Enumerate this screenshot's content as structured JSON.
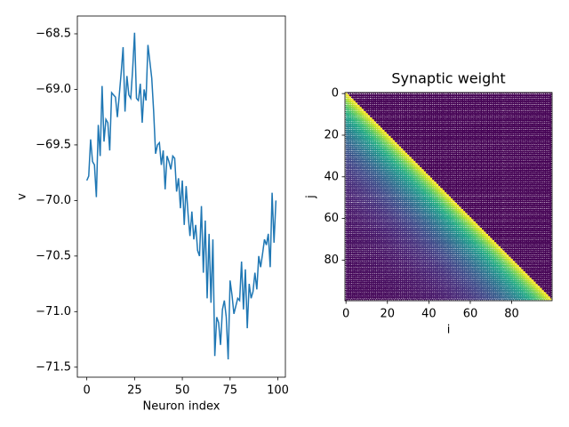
{
  "chart_data": [
    {
      "type": "line",
      "xlabel": "Neuron index",
      "ylabel": "v",
      "x": [
        0,
        1,
        2,
        3,
        4,
        5,
        6,
        7,
        8,
        9,
        10,
        11,
        12,
        13,
        14,
        15,
        16,
        17,
        18,
        19,
        20,
        21,
        22,
        23,
        24,
        25,
        26,
        27,
        28,
        29,
        30,
        31,
        32,
        33,
        34,
        35,
        36,
        37,
        38,
        39,
        40,
        41,
        42,
        43,
        44,
        45,
        46,
        47,
        48,
        49,
        50,
        51,
        52,
        53,
        54,
        55,
        56,
        57,
        58,
        59,
        60,
        61,
        62,
        63,
        64,
        65,
        66,
        67,
        68,
        69,
        70,
        71,
        72,
        73,
        74,
        75,
        76,
        77,
        78,
        79,
        80,
        81,
        82,
        83,
        84,
        85,
        86,
        87,
        88,
        89,
        90,
        91,
        92,
        93,
        94,
        95,
        96,
        97,
        98,
        99
      ],
      "series": [
        {
          "color": "#1f77b4",
          "values": [
            -69.82,
            -69.78,
            -69.45,
            -69.65,
            -69.68,
            -69.97,
            -69.32,
            -69.6,
            -68.97,
            -69.47,
            -69.27,
            -69.3,
            -69.55,
            -69.03,
            -69.05,
            -69.07,
            -69.25,
            -69.05,
            -68.85,
            -68.62,
            -69.2,
            -68.88,
            -69.05,
            -69.08,
            -68.82,
            -68.49,
            -69.08,
            -69.1,
            -68.95,
            -69.3,
            -69.0,
            -69.1,
            -68.6,
            -68.75,
            -68.9,
            -69.2,
            -69.58,
            -69.5,
            -69.48,
            -69.68,
            -69.55,
            -69.9,
            -69.6,
            -69.65,
            -69.72,
            -69.6,
            -69.62,
            -69.92,
            -69.8,
            -70.07,
            -69.82,
            -70.22,
            -69.87,
            -70.12,
            -70.32,
            -70.1,
            -70.35,
            -70.22,
            -70.45,
            -70.5,
            -70.05,
            -70.65,
            -70.18,
            -70.88,
            -70.3,
            -70.92,
            -70.35,
            -71.4,
            -71.05,
            -71.1,
            -71.3,
            -70.98,
            -70.9,
            -71.05,
            -71.43,
            -70.72,
            -70.85,
            -71.02,
            -70.95,
            -70.88,
            -70.9,
            -70.55,
            -70.98,
            -70.62,
            -71.15,
            -70.75,
            -70.88,
            -70.82,
            -70.65,
            -70.8,
            -70.5,
            -70.6,
            -70.48,
            -70.35,
            -70.4,
            -70.3,
            -70.6,
            -69.93,
            -70.38,
            -70.0
          ]
        }
      ],
      "xlim": [
        -4.95,
        103.95
      ],
      "ylim": [
        -71.59,
        -68.34
      ],
      "xticks": [
        0,
        25,
        50,
        75,
        100
      ],
      "yticks": [
        {
          "value": -71.5,
          "label": "−71.5"
        },
        {
          "value": -71,
          "label": "−71.0"
        },
        {
          "value": -70.5,
          "label": "−70.5"
        },
        {
          "value": -70,
          "label": "−70.0"
        },
        {
          "value": -69.5,
          "label": "−69.5"
        },
        {
          "value": -69,
          "label": "−69.0"
        },
        {
          "value": -68.5,
          "label": "−68.5"
        }
      ]
    },
    {
      "type": "heatmap",
      "title": "Synaptic weight",
      "xlabel": "i",
      "ylabel": "j",
      "offsets": [
        -99,
        -98,
        -97,
        -96,
        -95,
        -94,
        -93,
        -92,
        -91,
        -90,
        -89,
        -88,
        -87,
        -86,
        -85,
        -84,
        -83,
        -82,
        -81,
        -80,
        -79,
        -78,
        -77,
        -76,
        -75,
        -74,
        -73,
        -72,
        -71,
        -70,
        -69,
        -68,
        -67,
        -66,
        -65,
        -64,
        -63,
        -62,
        -61,
        -60,
        -59,
        -58,
        -57,
        -56,
        -55,
        -54,
        -53,
        -52,
        -51,
        -50,
        -49,
        -48,
        -47,
        -46,
        -45,
        -44,
        -43,
        -42,
        -41,
        -40,
        -39,
        -38,
        -37,
        -36,
        -35,
        -34,
        -33,
        -32,
        -31,
        -30,
        -29,
        -28,
        -27,
        -26,
        -25,
        -24,
        -23,
        -22,
        -21,
        -20,
        -19,
        -18,
        -17,
        -16,
        -15,
        -14,
        -13,
        -12,
        -11,
        -10,
        -9,
        -8,
        -7,
        -6,
        -5,
        -4,
        -3,
        -2,
        -1,
        0,
        1,
        2,
        3,
        4,
        5,
        6,
        7,
        8,
        9,
        10,
        11,
        12,
        13,
        14,
        15,
        16,
        17,
        18,
        19,
        20,
        21,
        22,
        23,
        24,
        25,
        26,
        27,
        28,
        29,
        30,
        31,
        32,
        33,
        34,
        35,
        36,
        37,
        38,
        39,
        40,
        41,
        42,
        43,
        44,
        45,
        46,
        47,
        48,
        49,
        50,
        51,
        52,
        53,
        54,
        55,
        56,
        57,
        58,
        59,
        60,
        61,
        62,
        63,
        64,
        65,
        66,
        67,
        68,
        69,
        70,
        71,
        72,
        73,
        74,
        75,
        76,
        77,
        78,
        79,
        80,
        81,
        82,
        83,
        84,
        85,
        86,
        87,
        88,
        89,
        90,
        91,
        92,
        93,
        94,
        95,
        96,
        97,
        98,
        99
      ],
      "values": [
        0,
        0,
        0,
        0,
        0,
        0,
        0,
        0,
        0,
        0,
        0,
        0,
        0,
        0,
        0,
        0,
        0,
        0,
        0,
        0,
        0,
        0,
        0,
        0,
        0,
        0,
        0,
        0,
        0,
        0,
        0,
        0,
        0,
        0,
        0,
        0,
        0,
        0,
        0,
        0,
        0,
        0,
        0,
        0,
        0,
        0,
        0,
        0,
        0,
        0,
        0,
        0,
        0,
        0,
        0,
        0,
        0,
        0,
        0,
        0,
        0,
        0,
        0,
        0,
        0,
        0,
        0,
        0,
        0,
        0,
        0,
        0,
        0,
        0,
        0,
        0,
        0,
        0,
        0,
        0,
        0,
        0,
        0,
        0,
        0,
        0,
        0,
        0,
        0,
        0,
        0,
        0,
        0,
        0,
        0,
        0,
        0,
        0,
        0,
        1,
        0.951,
        0.905,
        0.861,
        0.819,
        0.779,
        0.741,
        0.705,
        0.67,
        0.638,
        0.607,
        0.577,
        0.549,
        0.522,
        0.497,
        0.472,
        0.449,
        0.427,
        0.407,
        0.387,
        0.368,
        0.35,
        0.333,
        0.317,
        0.301,
        0.287,
        0.273,
        0.259,
        0.247,
        0.235,
        0.223,
        0.212,
        0.202,
        0.192,
        0.183,
        0.174,
        0.165,
        0.157,
        0.15,
        0.142,
        0.135,
        0.129,
        0.122,
        0.116,
        0.111,
        0.105,
        0.1,
        0.095,
        0.091,
        0.086,
        0.082,
        0.078,
        0.074,
        0.071,
        0.067,
        0.064,
        0.061,
        0.058,
        0.055,
        0.052,
        0.05,
        0.047,
        0.045,
        0.043,
        0.041,
        0.039,
        0.037,
        0.035,
        0.033,
        0.032,
        0.03,
        0.029,
        0.027,
        0.026,
        0.025,
        0.024,
        0.022,
        0.021,
        0.02,
        0.019,
        0.018,
        0.017,
        0.017,
        0.016,
        0.015,
        0.014,
        0.014,
        0.013,
        0.012,
        0.012,
        0.011,
        0.011,
        0.01,
        0.01,
        0.009,
        0.009,
        0.008,
        0.008,
        0.007,
        0.007
      ],
      "colormap": "viridis",
      "clim": [
        0,
        1
      ],
      "xlim": [
        -0.5,
        99.5
      ],
      "ylim": [
        99.5,
        -0.5
      ],
      "xticks": [
        0,
        20,
        40,
        60,
        80
      ],
      "yticks": [
        0,
        20,
        40,
        60,
        80
      ]
    }
  ]
}
